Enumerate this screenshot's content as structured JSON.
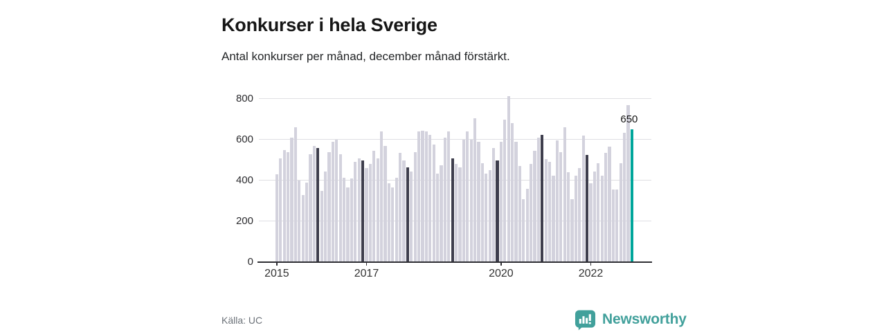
{
  "header": {
    "title": "Konkurser i hela Sverige",
    "subtitle": "Antal konkurser per månad, december månad förstärkt."
  },
  "footer": {
    "source": "Källa: UC",
    "brand": "Newsworthy"
  },
  "colors": {
    "bar_default": "#d3d2dd",
    "bar_december": "#3e3e4d",
    "bar_highlight": "#00a69b",
    "gridline": "#dfdfe3",
    "axis": "#2e2e33",
    "brand_teal": "#41a09b",
    "text_dark": "#161616",
    "text_muted": "#6b7178"
  },
  "chart_data": {
    "type": "bar",
    "title": "Konkurser i hela Sverige",
    "subtitle": "Antal konkurser per månad, december månad förstärkt.",
    "frequency": "monthly",
    "x_start": "2015-01",
    "x_end": "2022-12",
    "ylim": [
      0,
      800
    ],
    "y_ticks": [
      0,
      200,
      400,
      600,
      800
    ],
    "x_tick_years": [
      2015,
      2017,
      2020,
      2022
    ],
    "grid": "horizontal",
    "legend": "none",
    "emphasis_rule": "december months drawn dark",
    "highlight": {
      "month": "2022-12",
      "value": 650,
      "label": "650"
    },
    "values_by_year": {
      "2015": [
        430,
        510,
        550,
        540,
        610,
        660,
        400,
        330,
        390,
        530,
        570,
        560
      ],
      "2016": [
        350,
        445,
        540,
        590,
        600,
        530,
        415,
        365,
        410,
        490,
        510,
        500
      ],
      "2017": [
        460,
        480,
        545,
        510,
        640,
        570,
        385,
        365,
        415,
        535,
        500,
        465
      ],
      "2018": [
        445,
        540,
        640,
        645,
        640,
        625,
        575,
        435,
        475,
        610,
        640,
        510
      ],
      "2019": [
        480,
        465,
        600,
        640,
        600,
        705,
        590,
        485,
        435,
        450,
        560,
        500
      ],
      "2020": [
        590,
        700,
        815,
        680,
        590,
        470,
        310,
        360,
        480,
        545,
        610,
        625
      ],
      "2021": [
        505,
        490,
        425,
        595,
        540,
        660,
        440,
        310,
        425,
        460,
        620,
        525
      ],
      "2022": [
        385,
        445,
        485,
        425,
        535,
        565,
        355,
        355,
        485,
        635,
        770,
        650
      ]
    }
  }
}
